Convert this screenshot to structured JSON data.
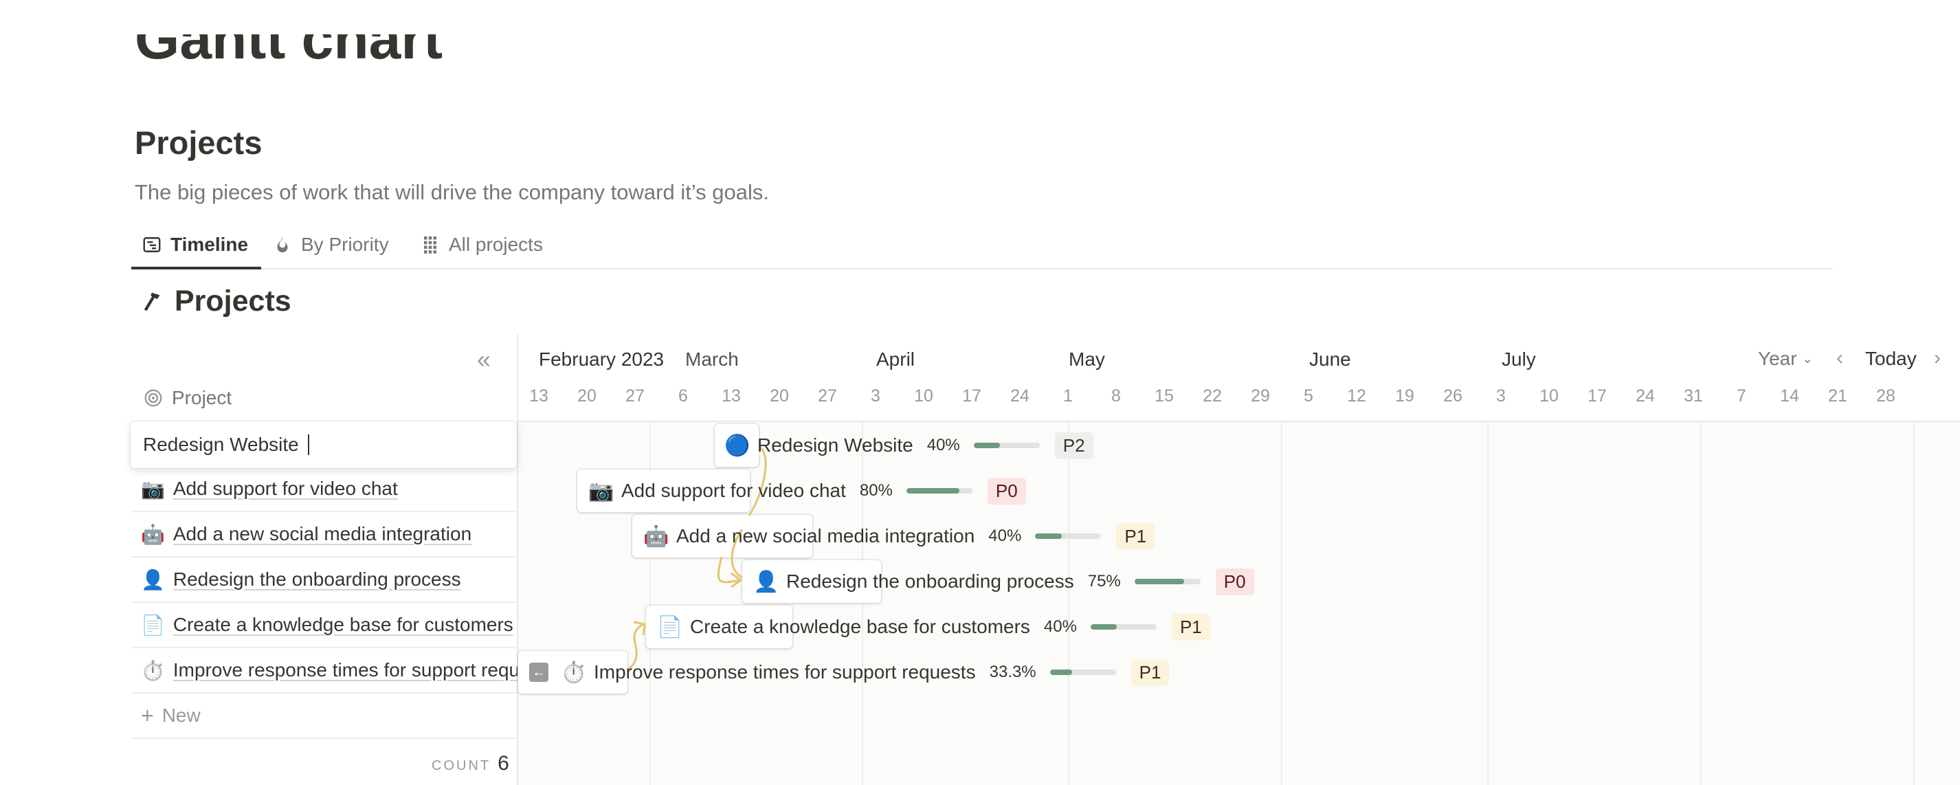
{
  "page": {
    "title": "Gantt chart"
  },
  "database": {
    "title": "Projects",
    "description": "The big pieces of work that will drive the company toward it’s goals.",
    "tabs": [
      {
        "label": "Timeline",
        "icon": "timeline-icon",
        "active": true
      },
      {
        "label": "By Priority",
        "icon": "fire-icon",
        "active": false
      },
      {
        "label": "All projects",
        "icon": "grid-icon",
        "active": false
      }
    ],
    "view_title": "Projects",
    "view_icon": "hammer-icon"
  },
  "timeline": {
    "months": [
      "February 2023",
      "March",
      "April",
      "May",
      "June",
      "July"
    ],
    "days": [
      "13",
      "20",
      "27",
      "6",
      "13",
      "20",
      "27",
      "3",
      "10",
      "17",
      "24",
      "1",
      "8",
      "15",
      "22",
      "29",
      "5",
      "12",
      "19",
      "26",
      "3",
      "10",
      "17",
      "24",
      "31",
      "7",
      "14",
      "21",
      "28"
    ],
    "scale": "Year",
    "today_label": "Today",
    "prev": "‹",
    "next": "›",
    "collapse": "«"
  },
  "list": {
    "header": "Project",
    "editing_value": "Redesign Website",
    "new_label": "New",
    "count_label": "COUNT",
    "count": "6"
  },
  "tasks": [
    {
      "icon": "🔵",
      "title": "Redesign Website",
      "progress_label": "40%",
      "progress": 40,
      "priority": "P2"
    },
    {
      "icon": "📷",
      "title": "Add support for video chat",
      "progress_label": "80%",
      "progress": 80,
      "priority": "P0"
    },
    {
      "icon": "🤖",
      "title": "Add a new social media integration",
      "progress_label": "40%",
      "progress": 40,
      "priority": "P1"
    },
    {
      "icon": "👤",
      "title": "Redesign the onboarding process",
      "progress_label": "75%",
      "progress": 75,
      "priority": "P0"
    },
    {
      "icon": "📄",
      "title": "Create a knowledge base for customers",
      "progress_label": "40%",
      "progress": 40,
      "priority": "P1"
    },
    {
      "icon": "⏱️",
      "title": "Improve response times for support requests",
      "progress_label": "33.3%",
      "progress": 33.3,
      "priority": "P1"
    }
  ],
  "colors": {
    "progress": "#6c9b7d",
    "track": "#e3e2e0",
    "dependency": "#e6c46e",
    "P0": {
      "bg": "#fbe4e4",
      "fg": "#5d1715"
    },
    "P1": {
      "bg": "#fbf3db",
      "fg": "#402c1b"
    },
    "P2": {
      "bg": "#eeeeed",
      "fg": "#37352f"
    }
  }
}
